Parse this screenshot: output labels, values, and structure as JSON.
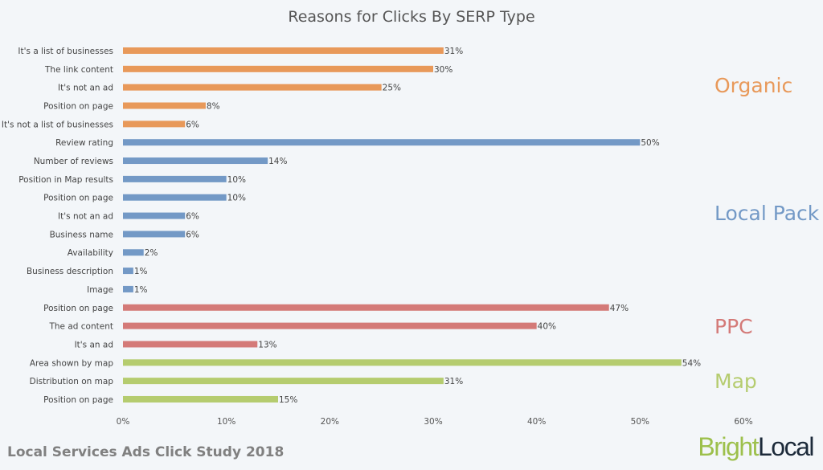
{
  "chart_data": {
    "type": "bar",
    "orientation": "horizontal",
    "title": "Reasons for Clicks By SERP Type",
    "xlim": [
      0,
      60
    ],
    "xticks": [
      "0%",
      "10%",
      "20%",
      "30%",
      "40%",
      "50%",
      "60%"
    ],
    "grid": false,
    "groups": [
      {
        "name": "Organic",
        "color": "#e8995a",
        "categories": [
          "It's a list of businesses",
          "The link content",
          "It's not an ad",
          "Position on page",
          "It's not a list of businesses"
        ],
        "values": [
          31,
          30,
          25,
          8,
          6
        ]
      },
      {
        "name": "Local Pack",
        "color": "#7399c6",
        "categories": [
          "Review rating",
          "Number of reviews",
          "Position in Map results",
          "Position on page",
          "It's not an ad",
          "Business name",
          "Availability",
          "Business description",
          "Image"
        ],
        "values": [
          50,
          14,
          10,
          10,
          6,
          6,
          2,
          1,
          1
        ]
      },
      {
        "name": "PPC",
        "color": "#d47a78",
        "categories": [
          "Position on page",
          "The ad content",
          "It's an ad"
        ],
        "values": [
          47,
          40,
          13
        ]
      },
      {
        "name": "Map",
        "color": "#b5cc6f",
        "categories": [
          "Area shown by map",
          "Distribution on map",
          "Position on page"
        ],
        "values": [
          54,
          31,
          15
        ]
      }
    ]
  },
  "footer": "Local Services Ads Click Study 2018",
  "logo": {
    "part1": "Bright",
    "part2": "Local"
  }
}
